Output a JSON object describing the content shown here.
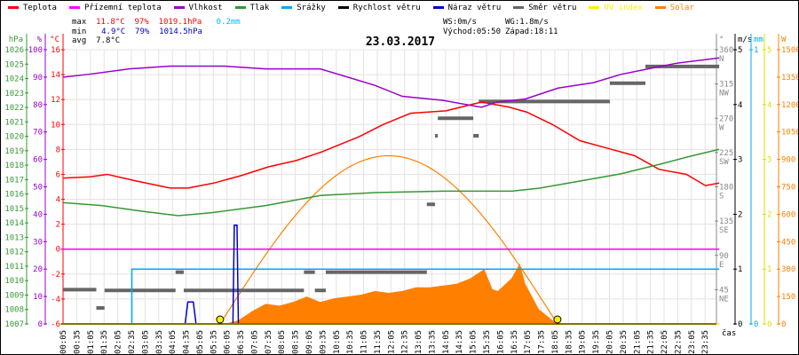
{
  "legend": [
    {
      "label": "Teplota",
      "color": "#ff0000"
    },
    {
      "label": "Přízemní teplota",
      "color": "#ff00ff"
    },
    {
      "label": "Vlhkost",
      "color": "#9900cc"
    },
    {
      "label": "Tlak",
      "color": "#339933"
    },
    {
      "label": "Srážky",
      "color": "#00aaee"
    },
    {
      "label": "Rychlost větru",
      "color": "#000000"
    },
    {
      "label": "Náraz větru",
      "color": "#0000cc"
    },
    {
      "label": "Směr větru",
      "color": "#666666"
    },
    {
      "label": "UV index",
      "color": "#ffee00"
    },
    {
      "label": "Solar",
      "color": "#ff8000"
    }
  ],
  "stats": {
    "max_label": "max",
    "max_temp": "11.8°C",
    "max_hum": "97%",
    "max_press": "1019.1hPa",
    "max_rain": "0.2mm",
    "min_label": "min",
    "min_temp": "4.9°C",
    "min_hum": "79%",
    "min_press": "1014.5hPa",
    "avg_label": "avg",
    "avg_temp": "7.8°C",
    "ws": "WS:0m/s",
    "wg": "WG:1.8m/s",
    "sunrise": "Východ:05:50",
    "sunset": "Západ:18:11"
  },
  "chart_data": {
    "type": "line",
    "title": "23.03.2017",
    "xlabel": "čas",
    "x_ticks": [
      "00:05",
      "00:35",
      "01:05",
      "01:35",
      "02:05",
      "02:35",
      "03:05",
      "03:35",
      "04:05",
      "04:35",
      "05:05",
      "05:35",
      "06:05",
      "06:35",
      "07:05",
      "07:35",
      "08:05",
      "08:35",
      "09:05",
      "09:35",
      "10:05",
      "10:35",
      "11:05",
      "11:35",
      "12:05",
      "12:35",
      "13:05",
      "13:35",
      "14:05",
      "14:35",
      "15:05",
      "15:35",
      "16:05",
      "16:35",
      "17:05",
      "17:35",
      "18:05",
      "18:35",
      "19:05",
      "19:35",
      "20:05",
      "20:35",
      "21:05",
      "21:35",
      "22:05",
      "22:35",
      "23:05",
      "23:35"
    ],
    "axes": {
      "hPa": {
        "unit": "hPa",
        "range": [
          1007,
          1026
        ],
        "ticks": [
          1007,
          1008,
          1009,
          1010,
          1011,
          1012,
          1013,
          1014,
          1015,
          1016,
          1017,
          1018,
          1019,
          1020,
          1021,
          1022,
          1023,
          1024,
          1025,
          1026
        ]
      },
      "pct": {
        "unit": "%",
        "range": [
          0,
          100
        ],
        "ticks": [
          0,
          10,
          20,
          30,
          40,
          50,
          60,
          70,
          80,
          90,
          100
        ]
      },
      "degC": {
        "unit": "°C",
        "range": [
          -6,
          16
        ],
        "ticks": [
          -6,
          -4,
          -2,
          0,
          2,
          4,
          6,
          8,
          10,
          12,
          14,
          16
        ]
      },
      "deg": {
        "unit": "°",
        "range": [
          0,
          360
        ],
        "ticks": [
          {
            "v": 360,
            "d": "N"
          },
          {
            "v": 315,
            "d": "NW"
          },
          {
            "v": 270,
            "d": "W"
          },
          {
            "v": 225,
            "d": "SW"
          },
          {
            "v": 180,
            "d": "S"
          },
          {
            "v": 135,
            "d": "SE"
          },
          {
            "v": 90,
            "d": "E"
          },
          {
            "v": 45,
            "d": "NE"
          }
        ]
      },
      "ms": {
        "unit": "m/s",
        "range": [
          0,
          5
        ],
        "ticks": [
          0,
          1,
          2,
          3,
          4,
          5
        ]
      },
      "mm": {
        "unit": "mm",
        "range": [
          0,
          1
        ],
        "ticks": [
          0,
          1
        ]
      },
      "uv": {
        "unit": "",
        "range": [
          0,
          5
        ],
        "ticks": [
          0,
          1,
          2,
          3,
          4,
          5
        ]
      },
      "W": {
        "unit": "W",
        "range": [
          0,
          1500
        ],
        "ticks": [
          0,
          150,
          300,
          450,
          600,
          750,
          900,
          1050,
          1200,
          1350,
          1500
        ]
      }
    },
    "series": [
      {
        "name": "Teplota",
        "axis": "degC",
        "color": "#ff0000",
        "points": [
          [
            0.1,
            5.7
          ],
          [
            1.06,
            5.8
          ],
          [
            1.7,
            6.0
          ],
          [
            2.7,
            5.5
          ],
          [
            4,
            4.9
          ],
          [
            4.66,
            4.9
          ],
          [
            5.6,
            5.3
          ],
          [
            6.6,
            5.9
          ],
          [
            7.6,
            6.6
          ],
          [
            8.6,
            7.1
          ],
          [
            9.55,
            7.8
          ],
          [
            10.9,
            9.0
          ],
          [
            11.8,
            10.0
          ],
          [
            12.8,
            10.9
          ],
          [
            14.1,
            11.1
          ],
          [
            15.4,
            11.8
          ],
          [
            16.4,
            11.4
          ],
          [
            17.05,
            11.0
          ],
          [
            18,
            10.0
          ],
          [
            19,
            8.7
          ],
          [
            20,
            8.1
          ],
          [
            21,
            7.5
          ],
          [
            21.9,
            6.4
          ],
          [
            22.9,
            6.0
          ],
          [
            23.6,
            5.1
          ],
          [
            24.1,
            5.3
          ]
        ]
      },
      {
        "name": "Přízemní teplota",
        "axis": "degC",
        "color": "#ff00ff",
        "points": [
          [
            0,
            0
          ],
          [
            24.1,
            0
          ]
        ]
      },
      {
        "name": "Vlhkost",
        "axis": "pct",
        "color": "#9900cc",
        "points": [
          [
            0.1,
            90
          ],
          [
            1,
            91
          ],
          [
            2.5,
            93
          ],
          [
            4,
            94
          ],
          [
            6,
            94
          ],
          [
            7.5,
            93
          ],
          [
            9.5,
            93
          ],
          [
            11.5,
            87
          ],
          [
            12.5,
            83
          ],
          [
            14,
            81.5
          ],
          [
            15.4,
            79
          ],
          [
            16,
            81
          ],
          [
            17,
            82
          ],
          [
            18.2,
            86
          ],
          [
            19.5,
            88
          ],
          [
            20.5,
            91
          ],
          [
            21.5,
            93
          ],
          [
            22.5,
            95
          ],
          [
            24.1,
            97
          ]
        ]
      },
      {
        "name": "Tlak",
        "axis": "hPa",
        "color": "#339933",
        "points": [
          [
            0.1,
            1015.4
          ],
          [
            1.5,
            1015.2
          ],
          [
            3,
            1014.8
          ],
          [
            4.3,
            1014.5
          ],
          [
            5.5,
            1014.7
          ],
          [
            7.5,
            1015.2
          ],
          [
            9.5,
            1015.9
          ],
          [
            11.5,
            1016.1
          ],
          [
            14,
            1016.2
          ],
          [
            16.5,
            1016.2
          ],
          [
            17.5,
            1016.4
          ],
          [
            19,
            1016.9
          ],
          [
            20.5,
            1017.4
          ],
          [
            22,
            1018.1
          ],
          [
            23,
            1018.6
          ],
          [
            24.1,
            1019.1
          ]
        ]
      },
      {
        "name": "Srážky",
        "axis": "mm",
        "color": "#00aaee",
        "points": [
          [
            0,
            0
          ],
          [
            2.6,
            0
          ],
          [
            2.6,
            0.2
          ],
          [
            24.1,
            0.2
          ]
        ]
      },
      {
        "name": "Náraz větru",
        "axis": "ms",
        "color": "#0000cc",
        "points": [
          [
            0,
            0
          ],
          [
            4.55,
            0
          ],
          [
            4.65,
            0.4
          ],
          [
            4.85,
            0.4
          ],
          [
            4.95,
            0
          ],
          [
            6.3,
            0
          ],
          [
            6.35,
            1.8
          ],
          [
            6.45,
            1.8
          ],
          [
            6.5,
            0
          ],
          [
            24.1,
            0
          ]
        ]
      },
      {
        "name": "UV index",
        "axis": "uv",
        "color": "#ffee00",
        "points": [
          [
            0,
            0
          ],
          [
            24.1,
            0
          ]
        ]
      }
    ],
    "solar": {
      "axis": "W",
      "color": "#ff8000",
      "points": [
        [
          6.0,
          0
        ],
        [
          6.5,
          20
        ],
        [
          7,
          70
        ],
        [
          7.5,
          110
        ],
        [
          8,
          100
        ],
        [
          8.5,
          120
        ],
        [
          9,
          150
        ],
        [
          9.5,
          120
        ],
        [
          10,
          140
        ],
        [
          10.5,
          150
        ],
        [
          11,
          160
        ],
        [
          11.5,
          180
        ],
        [
          12,
          170
        ],
        [
          12.5,
          180
        ],
        [
          13,
          200
        ],
        [
          13.5,
          200
        ],
        [
          14,
          210
        ],
        [
          14.5,
          220
        ],
        [
          15,
          250
        ],
        [
          15.5,
          300
        ],
        [
          15.8,
          190
        ],
        [
          16,
          180
        ],
        [
          16.5,
          250
        ],
        [
          16.8,
          330
        ],
        [
          17,
          220
        ],
        [
          17.5,
          80
        ],
        [
          18,
          20
        ],
        [
          18.2,
          0
        ]
      ],
      "theoretical_peak": 920,
      "sunrise_h": 5.83,
      "sunset_h": 18.18
    },
    "wind_direction": {
      "axis": "deg",
      "color": "#666666",
      "segments": [
        [
          0.1,
          1.3,
          45
        ],
        [
          1.3,
          1.6,
          21
        ],
        [
          1.6,
          4.2,
          44
        ],
        [
          4.2,
          4.5,
          68
        ],
        [
          4.5,
          8.9,
          44
        ],
        [
          8.9,
          9.3,
          68
        ],
        [
          9.3,
          9.7,
          44
        ],
        [
          9.7,
          13.4,
          68
        ],
        [
          13.4,
          13.7,
          157
        ],
        [
          13.7,
          13.8,
          247
        ],
        [
          13.8,
          15.1,
          270
        ],
        [
          15.1,
          15.3,
          247
        ],
        [
          15.3,
          20.1,
          292
        ],
        [
          20.1,
          21.4,
          316
        ],
        [
          21.4,
          24.1,
          338
        ]
      ]
    }
  }
}
